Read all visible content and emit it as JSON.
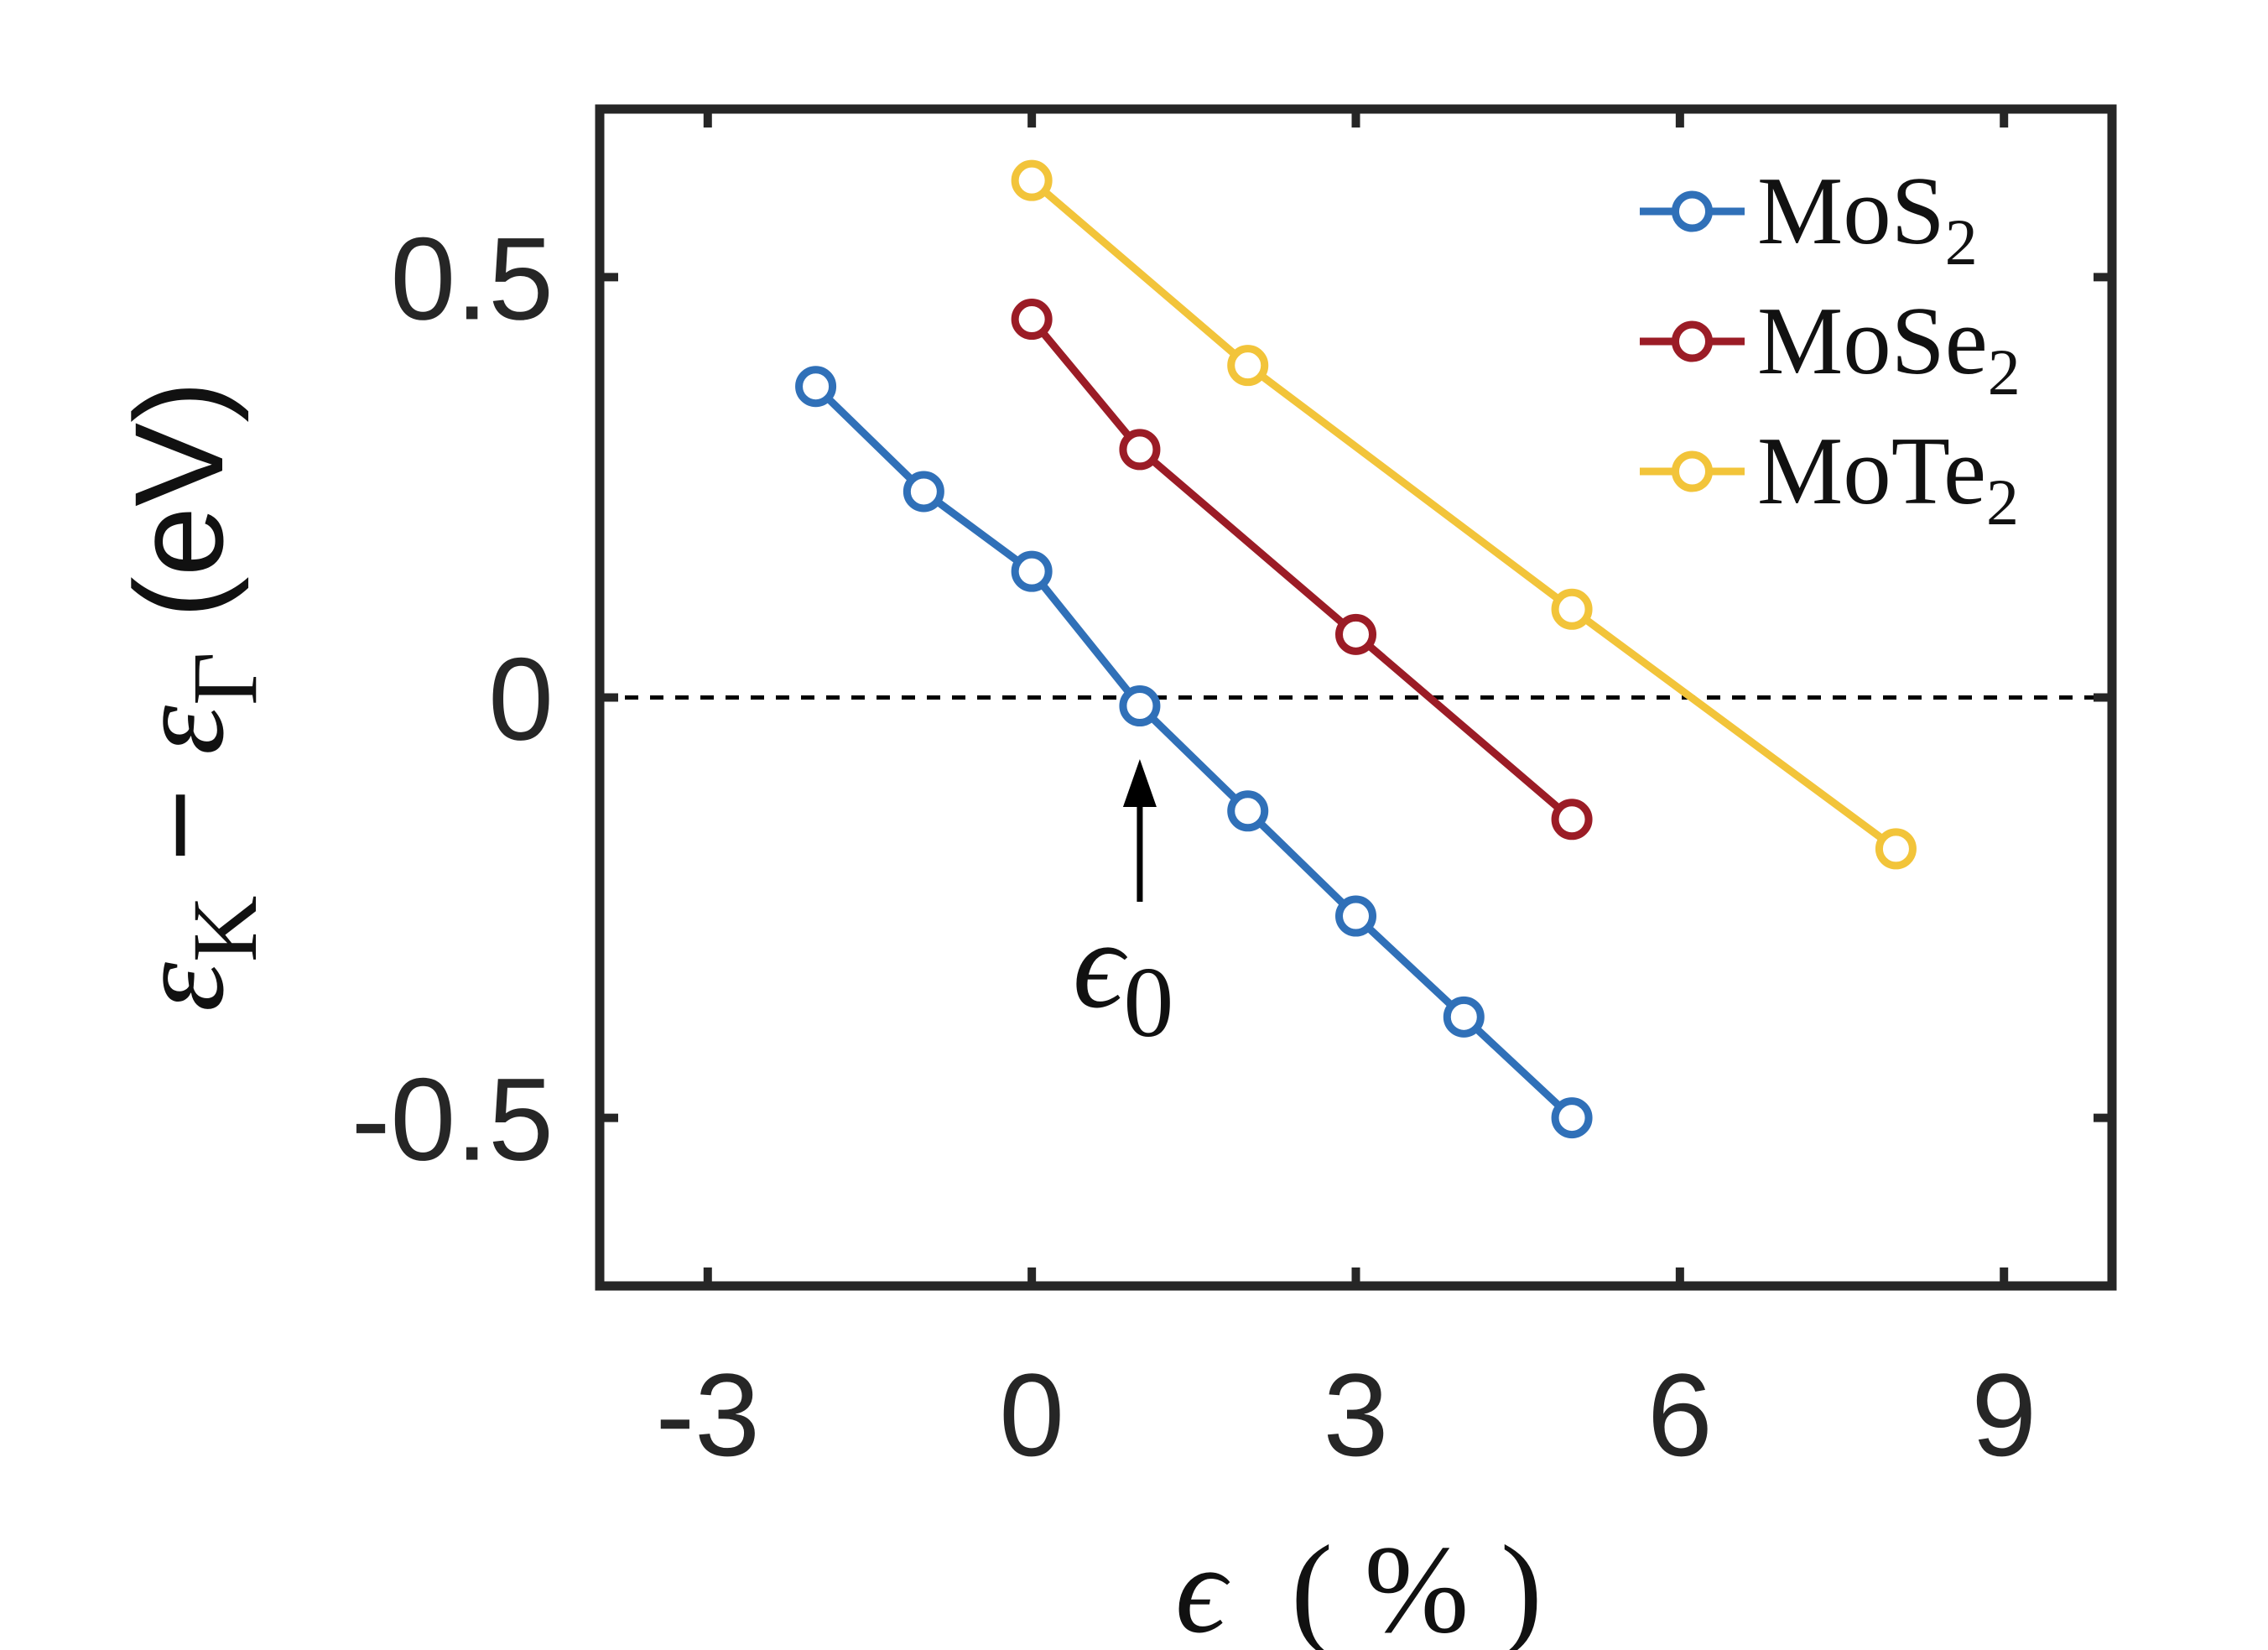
{
  "chart_data": {
    "type": "line",
    "xlabel": {
      "symbol": "ϵ",
      "unit": "( % )"
    },
    "ylabel": {
      "sym1": "ε",
      "sub1": "K",
      "minus": "−",
      "sym2": "ε",
      "sub2": "Γ",
      "unit": "(eV)"
    },
    "xlim": [
      -4,
      10
    ],
    "ylim": [
      -0.7,
      0.7
    ],
    "x_ticks": [
      -3,
      0,
      3,
      6,
      9
    ],
    "y_ticks": [
      -0.5,
      0,
      0.5
    ],
    "x_tick_labels": [
      "-3",
      "0",
      "3",
      "6",
      "9"
    ],
    "y_tick_labels": [
      "-0.5",
      "0",
      "0.5"
    ],
    "grid": false,
    "legend_position": "top-right",
    "reference_line": {
      "y": 0,
      "style": "dashed"
    },
    "annotation": {
      "symbol": "ϵ",
      "subscript": "0",
      "x": 1
    },
    "series": [
      {
        "name": "MoS",
        "name_sub": "2",
        "color": "#3070B8",
        "x": [
          -2,
          -1,
          0,
          1,
          2,
          3,
          4,
          5
        ],
        "y": [
          0.37,
          0.245,
          0.15,
          -0.01,
          -0.135,
          -0.26,
          -0.38,
          -0.5
        ]
      },
      {
        "name": "MoSe",
        "name_sub": "2",
        "color": "#9B1C26",
        "x": [
          0,
          1,
          3,
          5
        ],
        "y": [
          0.45,
          0.295,
          0.075,
          -0.145
        ]
      },
      {
        "name": "MoTe",
        "name_sub": "2",
        "color": "#F2C43A",
        "x": [
          0,
          2,
          5,
          8
        ],
        "y": [
          0.615,
          0.395,
          0.105,
          -0.18
        ]
      }
    ]
  }
}
